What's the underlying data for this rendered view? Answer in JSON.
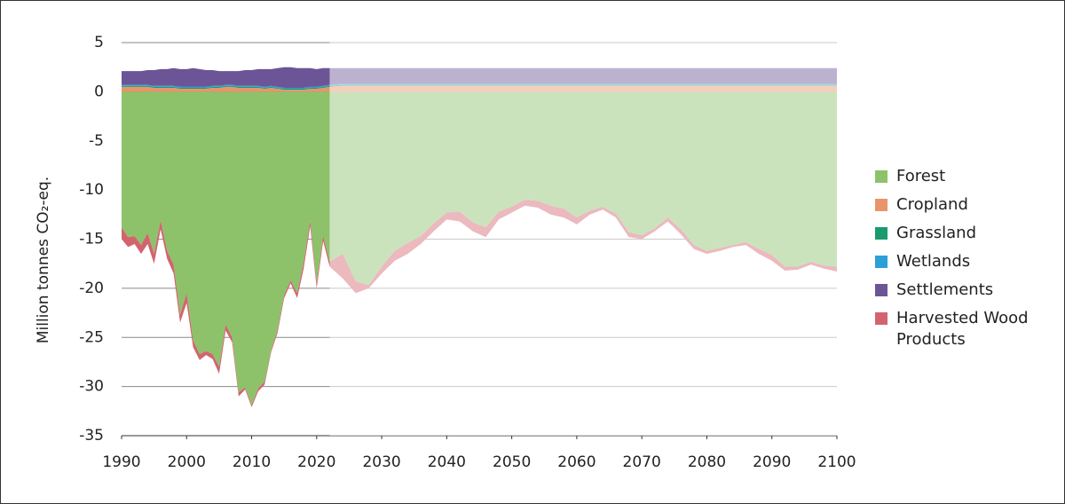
{
  "chart_data": {
    "type": "stacked-area",
    "y_label": "Million tonnes CO₂-eq.",
    "ylim": [
      -35,
      5
    ],
    "yticks": [
      5,
      0,
      -5,
      -10,
      -15,
      -20,
      -25,
      -30,
      -35
    ],
    "xlim": [
      1990,
      2100
    ],
    "xticks": [
      1990,
      2000,
      2010,
      2020,
      2030,
      2040,
      2050,
      2060,
      2070,
      2080,
      2090,
      2100
    ],
    "grid": true,
    "legend": "right",
    "projection_start": 2022,
    "x": [
      1990,
      1991,
      1992,
      1993,
      1994,
      1995,
      1996,
      1997,
      1998,
      1999,
      2000,
      2001,
      2002,
      2003,
      2004,
      2005,
      2006,
      2007,
      2008,
      2009,
      2010,
      2011,
      2012,
      2013,
      2014,
      2015,
      2016,
      2017,
      2018,
      2019,
      2020,
      2021,
      2022,
      2024,
      2026,
      2028,
      2030,
      2032,
      2034,
      2036,
      2038,
      2040,
      2042,
      2044,
      2046,
      2048,
      2050,
      2052,
      2054,
      2056,
      2058,
      2060,
      2062,
      2064,
      2066,
      2068,
      2070,
      2072,
      2074,
      2076,
      2078,
      2080,
      2082,
      2084,
      2086,
      2088,
      2090,
      2092,
      2094,
      2096,
      2098,
      2100
    ],
    "series": [
      {
        "name": "Forest",
        "color": "#8dc26b",
        "values": [
          -13.8,
          -14.8,
          -14.7,
          -15.6,
          -14.4,
          -16.5,
          -13.1,
          -16.2,
          -17.6,
          -22.7,
          -20.5,
          -25.3,
          -26.7,
          -26.4,
          -26.7,
          -28.0,
          -23.7,
          -25.0,
          -30.6,
          -30.1,
          -31.9,
          -30.2,
          -29.5,
          -26.3,
          -24.2,
          -20.7,
          -19.2,
          -20.5,
          -17.4,
          -13.1,
          -19.5,
          -14.7,
          -17.3,
          -16.5,
          -19.3,
          -19.7,
          -17.8,
          -16.2,
          -15.4,
          -14.7,
          -13.4,
          -12.3,
          -12.2,
          -13.3,
          -13.8,
          -12.2,
          -11.7,
          -11.0,
          -11.1,
          -11.6,
          -11.9,
          -12.8,
          -12.1,
          -11.7,
          -12.4,
          -14.3,
          -14.6,
          -13.9,
          -12.8,
          -14.0,
          -15.6,
          -16.2,
          -15.9,
          -15.6,
          -15.3,
          -16.0,
          -16.6,
          -17.8,
          -17.8,
          -17.3,
          -17.7,
          -17.8
        ]
      },
      {
        "name": "Cropland",
        "color": "#e8956a",
        "values": [
          0.5,
          0.5,
          0.5,
          0.5,
          0.5,
          0.4,
          0.4,
          0.4,
          0.4,
          0.3,
          0.3,
          0.3,
          0.3,
          0.3,
          0.4,
          0.4,
          0.5,
          0.5,
          0.4,
          0.4,
          0.4,
          0.4,
          0.3,
          0.4,
          0.3,
          0.2,
          0.2,
          0.2,
          0.2,
          0.3,
          0.3,
          0.4,
          0.5,
          0.6,
          0.6,
          0.6,
          0.6,
          0.6,
          0.6,
          0.6,
          0.6,
          0.6,
          0.6,
          0.6,
          0.6,
          0.6,
          0.6,
          0.6,
          0.6,
          0.6,
          0.6,
          0.6,
          0.6,
          0.6,
          0.6,
          0.6,
          0.6,
          0.6,
          0.6,
          0.6,
          0.6,
          0.6,
          0.6,
          0.6,
          0.6,
          0.6,
          0.6,
          0.6,
          0.6,
          0.6,
          0.6,
          0.6
        ]
      },
      {
        "name": "Grassland",
        "color": "#1a9b6e",
        "values": [
          0.1,
          0.1,
          0.1,
          0.1,
          0.1,
          0.1,
          0.1,
          0.1,
          0.1,
          0.1,
          0.1,
          0.1,
          0.1,
          0.1,
          0.1,
          0.1,
          0.1,
          0.1,
          0.1,
          0.1,
          0.1,
          0.1,
          0.1,
          0.1,
          0.1,
          0.1,
          0.1,
          0.1,
          0.1,
          0.1,
          0.1,
          0.1,
          0.1,
          0.1,
          0.1,
          0.1,
          0.1,
          0.1,
          0.1,
          0.1,
          0.1,
          0.1,
          0.1,
          0.1,
          0.1,
          0.1,
          0.1,
          0.1,
          0.1,
          0.1,
          0.1,
          0.1,
          0.1,
          0.1,
          0.1,
          0.1,
          0.1,
          0.1,
          0.1,
          0.1,
          0.1,
          0.1,
          0.1,
          0.1,
          0.1,
          0.1,
          0.1,
          0.1,
          0.1,
          0.1,
          0.1,
          0.1
        ]
      },
      {
        "name": "Wetlands",
        "color": "#2a9fd8",
        "values": [
          0.1,
          0.1,
          0.1,
          0.1,
          0.1,
          0.1,
          0.1,
          0.1,
          0.1,
          0.1,
          0.1,
          0.1,
          0.1,
          0.1,
          0.1,
          0.1,
          0.1,
          0.1,
          0.1,
          0.1,
          0.1,
          0.1,
          0.1,
          0.1,
          0.1,
          0.1,
          0.1,
          0.1,
          0.1,
          0.1,
          0.1,
          0.1,
          0.1,
          0.1,
          0.1,
          0.1,
          0.1,
          0.1,
          0.1,
          0.1,
          0.1,
          0.1,
          0.1,
          0.1,
          0.1,
          0.1,
          0.1,
          0.1,
          0.1,
          0.1,
          0.1,
          0.1,
          0.1,
          0.1,
          0.1,
          0.1,
          0.1,
          0.1,
          0.1,
          0.1,
          0.1,
          0.1,
          0.1,
          0.1,
          0.1,
          0.1,
          0.1,
          0.1,
          0.1,
          0.1,
          0.1,
          0.1
        ]
      },
      {
        "name": "Settlements",
        "color": "#6b5597",
        "values": [
          1.4,
          1.4,
          1.4,
          1.4,
          1.5,
          1.6,
          1.7,
          1.7,
          1.8,
          1.8,
          1.8,
          1.9,
          1.8,
          1.7,
          1.6,
          1.5,
          1.4,
          1.4,
          1.5,
          1.6,
          1.6,
          1.7,
          1.8,
          1.7,
          1.9,
          2.1,
          2.1,
          2.0,
          2.0,
          1.9,
          1.8,
          1.8,
          1.7,
          1.6,
          1.6,
          1.6,
          1.6,
          1.6,
          1.6,
          1.6,
          1.6,
          1.6,
          1.6,
          1.6,
          1.6,
          1.6,
          1.6,
          1.6,
          1.6,
          1.6,
          1.6,
          1.6,
          1.6,
          1.6,
          1.6,
          1.6,
          1.6,
          1.6,
          1.6,
          1.6,
          1.6,
          1.6,
          1.6,
          1.6,
          1.6,
          1.6,
          1.6,
          1.6,
          1.6,
          1.6,
          1.6,
          1.6
        ]
      },
      {
        "name": "Harvested Wood Products",
        "color": "#d2646f",
        "values": [
          -1.2,
          -1.0,
          -0.8,
          -0.9,
          -1.1,
          -1.0,
          -0.9,
          -0.8,
          -0.9,
          -0.8,
          -1.0,
          -0.7,
          -0.6,
          -0.4,
          -0.5,
          -0.7,
          -0.6,
          -0.5,
          -0.4,
          -0.2,
          -0.2,
          -0.3,
          -0.3,
          -0.2,
          -0.3,
          -0.3,
          -0.3,
          -0.5,
          -0.6,
          -0.6,
          -0.5,
          -0.5,
          -0.5,
          -2.5,
          -1.2,
          -0.3,
          -0.7,
          -1.0,
          -1.1,
          -0.8,
          -0.8,
          -0.7,
          -1.0,
          -0.9,
          -1.0,
          -0.8,
          -0.6,
          -0.6,
          -0.7,
          -0.9,
          -0.9,
          -0.7,
          -0.4,
          -0.3,
          -0.4,
          -0.5,
          -0.4,
          -0.3,
          -0.4,
          -0.5,
          -0.4,
          -0.3,
          -0.3,
          -0.2,
          -0.3,
          -0.5,
          -0.6,
          -0.4,
          -0.3,
          -0.3,
          -0.3,
          -0.5
        ]
      }
    ]
  }
}
